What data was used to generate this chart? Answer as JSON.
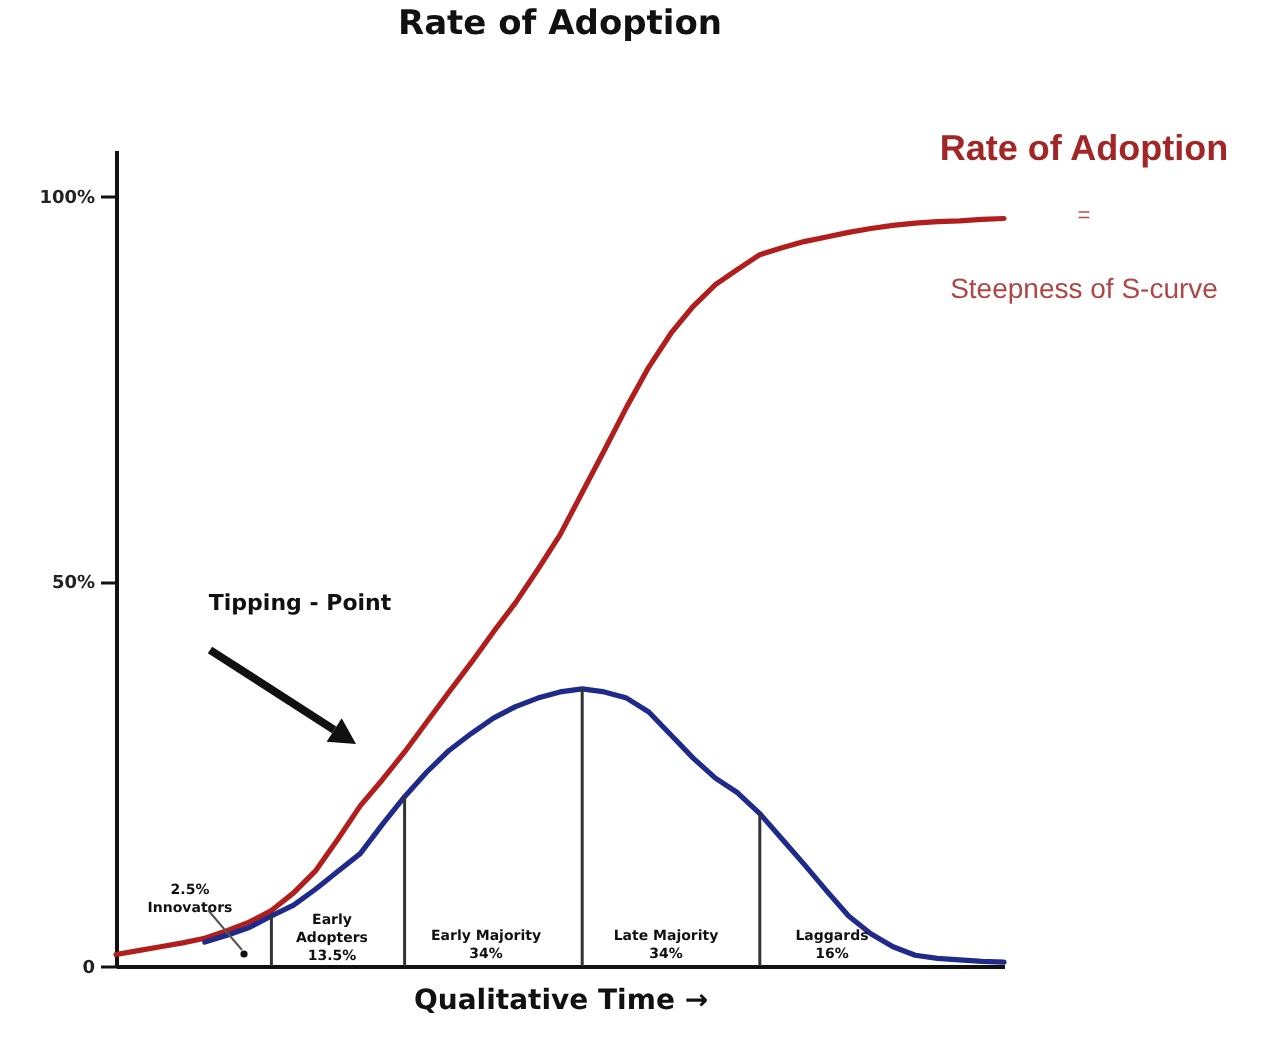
{
  "chart_data": {
    "type": "line",
    "title": "Rate of Adoption",
    "xlabel": "Qualitative Time →",
    "categories": [
      null,
      null,
      null,
      null,
      null,
      null,
      null,
      null,
      null,
      null,
      null,
      null,
      null,
      null,
      null,
      null,
      null,
      null,
      null,
      null,
      null,
      null,
      null,
      null,
      null,
      null,
      null,
      null,
      null,
      null,
      null,
      null,
      null,
      null,
      null,
      null,
      null,
      null,
      null,
      null,
      null
    ],
    "ylim": [
      0,
      106
    ],
    "yticks": [
      {
        "value": 0,
        "label": "0"
      },
      {
        "value": 50,
        "label": "50%"
      },
      {
        "value": 100,
        "label": "100%"
      }
    ],
    "tick_labels": "y",
    "grid": false,
    "series": [
      {
        "color": "#b01e1e",
        "values": [
          1.5,
          2.0,
          2.5,
          3.0,
          3.6,
          4.6,
          5.7,
          7.2,
          9.5,
          12.4,
          16.5,
          20.8,
          24.2,
          27.8,
          31.7,
          35.6,
          39.4,
          43.4,
          47.2,
          51.5,
          56,
          61.5,
          67,
          72.6,
          77.8,
          82.2,
          85.7,
          88.5,
          90.5,
          92.4,
          93.3,
          94.1,
          94.7,
          95.3,
          95.8,
          96.2,
          96.5,
          96.7,
          96.8,
          97,
          97.1
        ]
      },
      {
        "color": "#1f2a8a",
        "values": [
          null,
          null,
          null,
          null,
          3.1,
          4,
          5,
          6.5,
          7.9,
          10,
          12.3,
          14.6,
          18.4,
          22,
          25.2,
          28,
          30.2,
          32.2,
          33.7,
          34.8,
          35.6,
          36,
          35.6,
          34.8,
          33,
          30,
          27,
          24.4,
          22.5,
          19.8,
          16.5,
          13.2,
          9.8,
          6.5,
          4.2,
          2.5,
          1.4,
          1.0,
          0.8,
          0.6,
          0.5
        ]
      }
    ],
    "annotations": [
      "Tipping - Point",
      "2.5%\nInnovators",
      "Early\nAdopters\n13.5%",
      "Early Majority\n34%",
      "Late Majority\n34%",
      "Laggards\n16%",
      "Rate of Adoption",
      "=",
      "Steepness of S-curve"
    ]
  }
}
